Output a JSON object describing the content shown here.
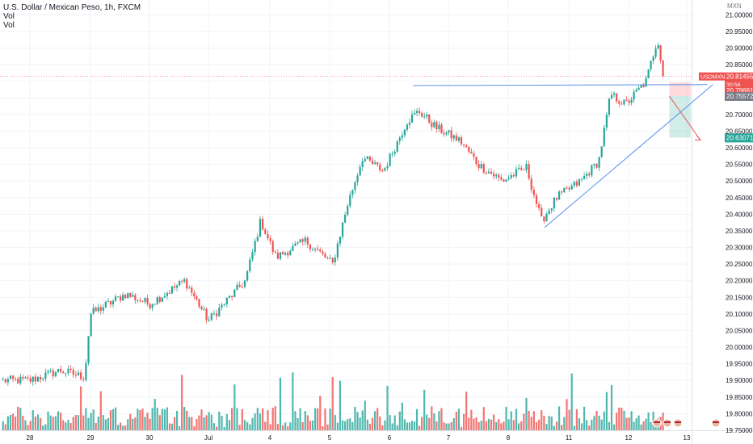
{
  "legend": {
    "symbol_title": "U.S. Dollar / Mexican Peso, 1h, FXCM",
    "vol_1": "Vol",
    "vol_2": "Vol"
  },
  "chart_data": {
    "type": "candlestick",
    "currency_label": "MXN",
    "y_ticks": [
      "21.00000",
      "20.95000",
      "20.90000",
      "20.85000",
      "20.80000",
      "20.75000",
      "20.70000",
      "20.65000",
      "20.60000",
      "20.55000",
      "20.50000",
      "20.45000",
      "20.40000",
      "20.35000",
      "20.30000",
      "20.25000",
      "20.20000",
      "20.15000",
      "20.10000",
      "20.05000",
      "20.00000",
      "19.95000",
      "19.90000",
      "19.85000",
      "19.80000",
      "19.75000"
    ],
    "ylim": [
      19.745,
      21.03
    ],
    "x_ticks": [
      "28",
      "29",
      "30",
      "Jul",
      "4",
      "5",
      "6",
      "7",
      "8",
      "11",
      "12",
      "13"
    ],
    "price_tags": [
      {
        "label": "USDMXN",
        "value": "20.81455",
        "countdown": "30:56",
        "color": "#ef5350"
      },
      {
        "label": "",
        "value": "20.79661",
        "color": "#ef5350"
      },
      {
        "label": "",
        "value": "20.75572",
        "color": "#787b86"
      },
      {
        "label": "",
        "value": "20.63071",
        "color": "#26a69a"
      }
    ],
    "current_price": 20.81455,
    "position": {
      "entry": 20.75572,
      "stop": 20.79661,
      "target": 20.63071
    },
    "trendlines": [
      {
        "from": [
          6.4,
          20.787
        ],
        "to": [
          11.35,
          20.79
        ]
      },
      {
        "from": [
          8.6,
          20.36
        ],
        "to": [
          11.45,
          20.79
        ]
      }
    ],
    "colors": {
      "up": "#26a69a",
      "down": "#ef5350",
      "grid": "#f0f3fa",
      "line": "#5b8def"
    },
    "anchors": [
      {
        "x": 0.0,
        "price": 19.9
      },
      {
        "x": 0.5,
        "price": 19.93
      },
      {
        "x": 0.9,
        "price": 19.91
      },
      {
        "x": 1.0,
        "price": 20.1
      },
      {
        "x": 1.6,
        "price": 20.16
      },
      {
        "x": 2.0,
        "price": 20.13
      },
      {
        "x": 2.6,
        "price": 20.2
      },
      {
        "x": 3.0,
        "price": 20.08
      },
      {
        "x": 3.6,
        "price": 20.2
      },
      {
        "x": 3.85,
        "price": 20.38
      },
      {
        "x": 4.1,
        "price": 20.27
      },
      {
        "x": 4.6,
        "price": 20.32
      },
      {
        "x": 5.05,
        "price": 20.25
      },
      {
        "x": 5.3,
        "price": 20.43
      },
      {
        "x": 5.55,
        "price": 20.57
      },
      {
        "x": 5.9,
        "price": 20.53
      },
      {
        "x": 6.3,
        "price": 20.68
      },
      {
        "x": 6.5,
        "price": 20.71
      },
      {
        "x": 6.8,
        "price": 20.66
      },
      {
        "x": 7.2,
        "price": 20.62
      },
      {
        "x": 7.5,
        "price": 20.55
      },
      {
        "x": 7.9,
        "price": 20.5
      },
      {
        "x": 8.3,
        "price": 20.54
      },
      {
        "x": 8.55,
        "price": 20.38
      },
      {
        "x": 8.8,
        "price": 20.45
      },
      {
        "x": 9.2,
        "price": 20.5
      },
      {
        "x": 9.5,
        "price": 20.56
      },
      {
        "x": 9.7,
        "price": 20.76
      },
      {
        "x": 9.95,
        "price": 20.73
      },
      {
        "x": 10.3,
        "price": 20.8
      },
      {
        "x": 10.5,
        "price": 20.93
      },
      {
        "x": 10.6,
        "price": 20.81
      }
    ]
  }
}
